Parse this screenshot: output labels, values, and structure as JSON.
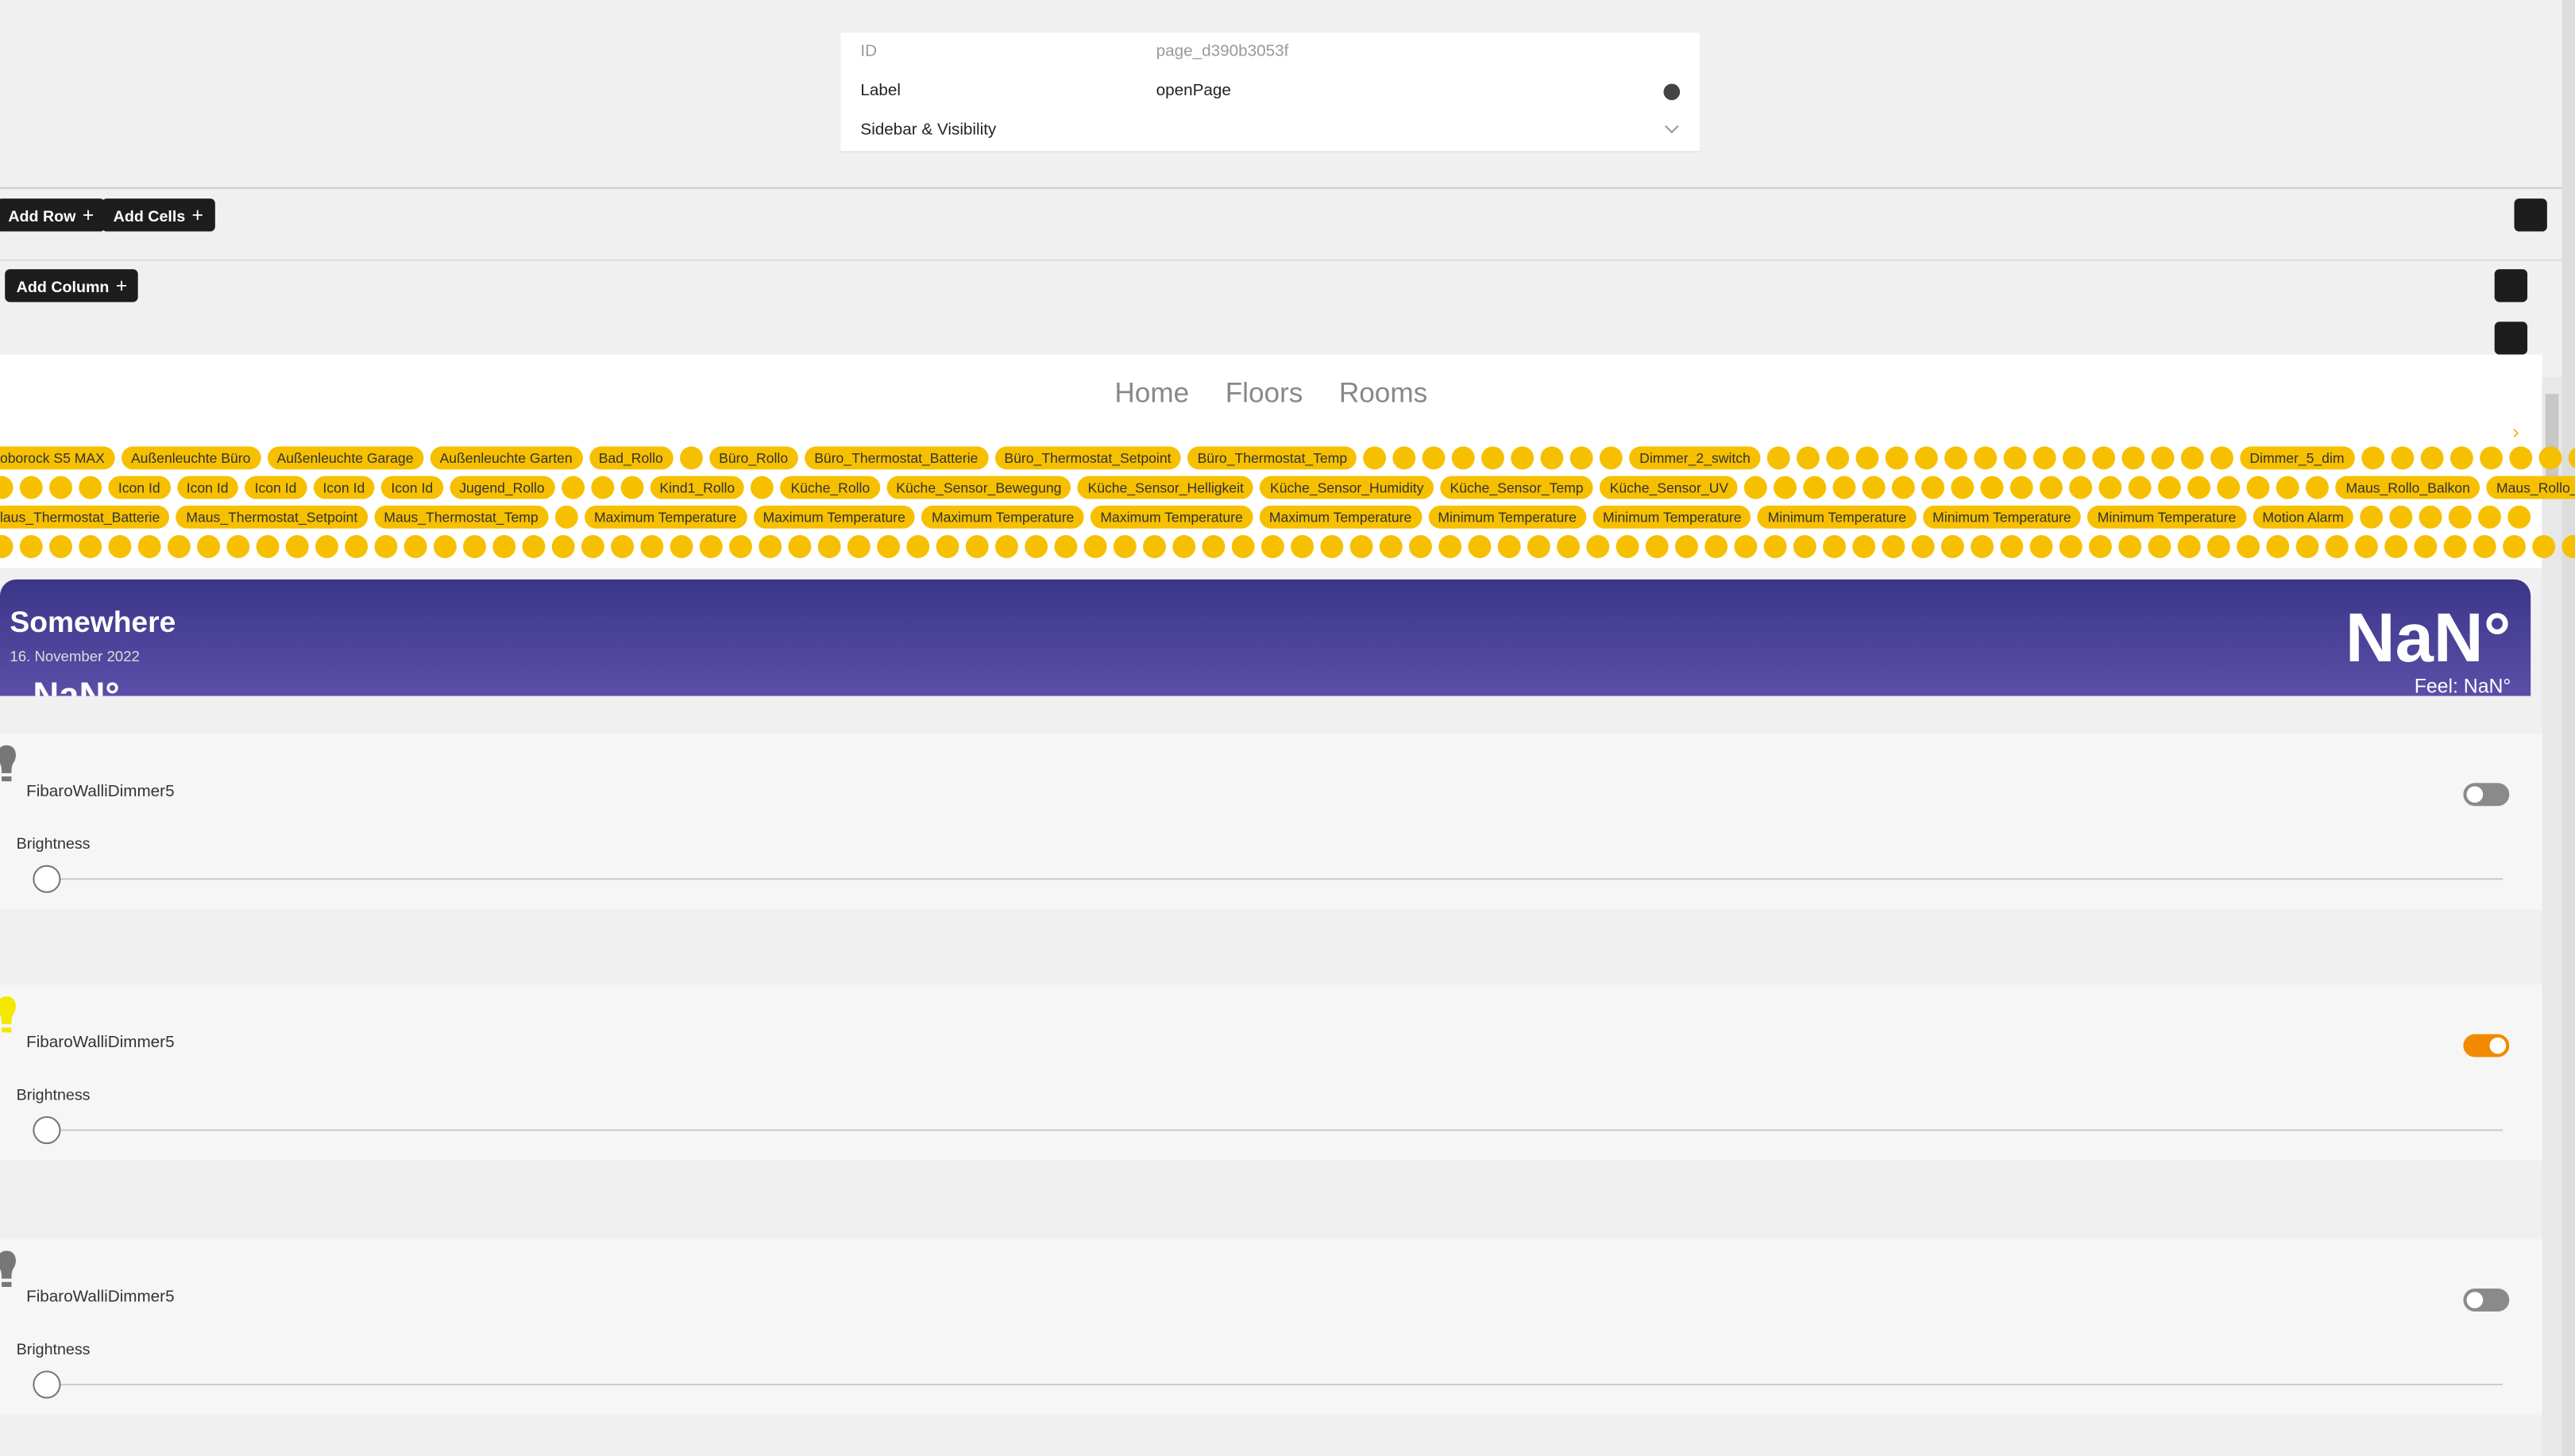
{
  "editor": {
    "fields": [
      {
        "label": "ID",
        "value": "page_d390b3053f"
      },
      {
        "label": "Label",
        "value": "openPage"
      },
      {
        "label": "Sidebar & Visibility"
      }
    ]
  },
  "toolbar": {
    "buttons": [
      "Add Row",
      "Add Cells"
    ],
    "column_button": "Add Column"
  },
  "nav": [
    "Home",
    "Floors",
    "Rooms"
  ],
  "chips": [
    [
      "oborock S5 MAX",
      "Außenleuchte Büro",
      "Außenleuchte Garage",
      "Außenleuchte Garten",
      "Bad_Rollo",
      null,
      "Büro_Rollo",
      "Büro_Thermostat_Batterie",
      "Büro_Thermostat_Setpoint",
      "Büro_Thermostat_Temp",
      null,
      null,
      null,
      null,
      null,
      null,
      null,
      null,
      null,
      "Dimmer_2_switch",
      null,
      null,
      null,
      null,
      null,
      null,
      null,
      null,
      null,
      null,
      null,
      null,
      null,
      null,
      null,
      null,
      "Dimmer_5_dim",
      null,
      null,
      null,
      null,
      null,
      null,
      null,
      null,
      null
    ],
    [
      null,
      null,
      null,
      null,
      "Icon Id",
      "Icon Id",
      "Icon Id",
      "Icon Id",
      "Icon Id",
      "Jugend_Rollo",
      null,
      null,
      null,
      "Kind1_Rollo",
      null,
      "Küche_Rollo",
      "Küche_Sensor_Bewegung",
      "Küche_Sensor_Helligkeit",
      "Küche_Sensor_Humidity",
      "Küche_Sensor_Temp",
      "Küche_Sensor_UV",
      null,
      null,
      null,
      null,
      null,
      null,
      null,
      null,
      null,
      null,
      null,
      null,
      null,
      null,
      null,
      null,
      null,
      null,
      null,
      null,
      "Maus_Rollo_Balkon",
      "Maus_Rollo_Garten"
    ],
    [
      "laus_Thermostat_Batterie",
      "Maus_Thermostat_Setpoint",
      "Maus_Thermostat_Temp",
      null,
      "Maximum Temperature",
      "Maximum Temperature",
      "Maximum Temperature",
      "Maximum Temperature",
      "Maximum Temperature",
      "Minimum Temperature",
      "Minimum Temperature",
      "Minimum Temperature",
      "Minimum Temperature",
      "Minimum Temperature",
      "Motion Alarm",
      null,
      null,
      null,
      null,
      null,
      null
    ],
    [
      null,
      null,
      null,
      null,
      null,
      null,
      null,
      null,
      null,
      null,
      null,
      null,
      null,
      null,
      null,
      null,
      null,
      null,
      null,
      null,
      null,
      null,
      null,
      null,
      null,
      null,
      null,
      null,
      null,
      null,
      null,
      null,
      null,
      null,
      null,
      null,
      null,
      null,
      null,
      null,
      null,
      null,
      null,
      null,
      null,
      null,
      null,
      null,
      null,
      null,
      null,
      null,
      null,
      null,
      null,
      null,
      null,
      null,
      null,
      null,
      null,
      null,
      null,
      null,
      null,
      null,
      null,
      null,
      null,
      null,
      null,
      null,
      null,
      null,
      null,
      null,
      null,
      null,
      null,
      null,
      null,
      null,
      null,
      null,
      null,
      null,
      null,
      null,
      null,
      null,
      null,
      null,
      null,
      null,
      null,
      null,
      null,
      null,
      null,
      null,
      null,
      null,
      null,
      null,
      null,
      null,
      null,
      null,
      null,
      null
    ]
  ],
  "weather": {
    "location": "Somewhere",
    "date": "16. November 2022",
    "temperature": "NaN°",
    "feel": "Feel: NaN°",
    "current": "NaN°"
  },
  "dimmers": [
    {
      "name": "FibaroWalliDimmer5",
      "slider_label": "Brightness",
      "on": false
    },
    {
      "name": "FibaroWalliDimmer5",
      "slider_label": "Brightness",
      "on": true
    },
    {
      "name": "FibaroWalliDimmer5",
      "slider_label": "Brightness",
      "on": false
    }
  ]
}
